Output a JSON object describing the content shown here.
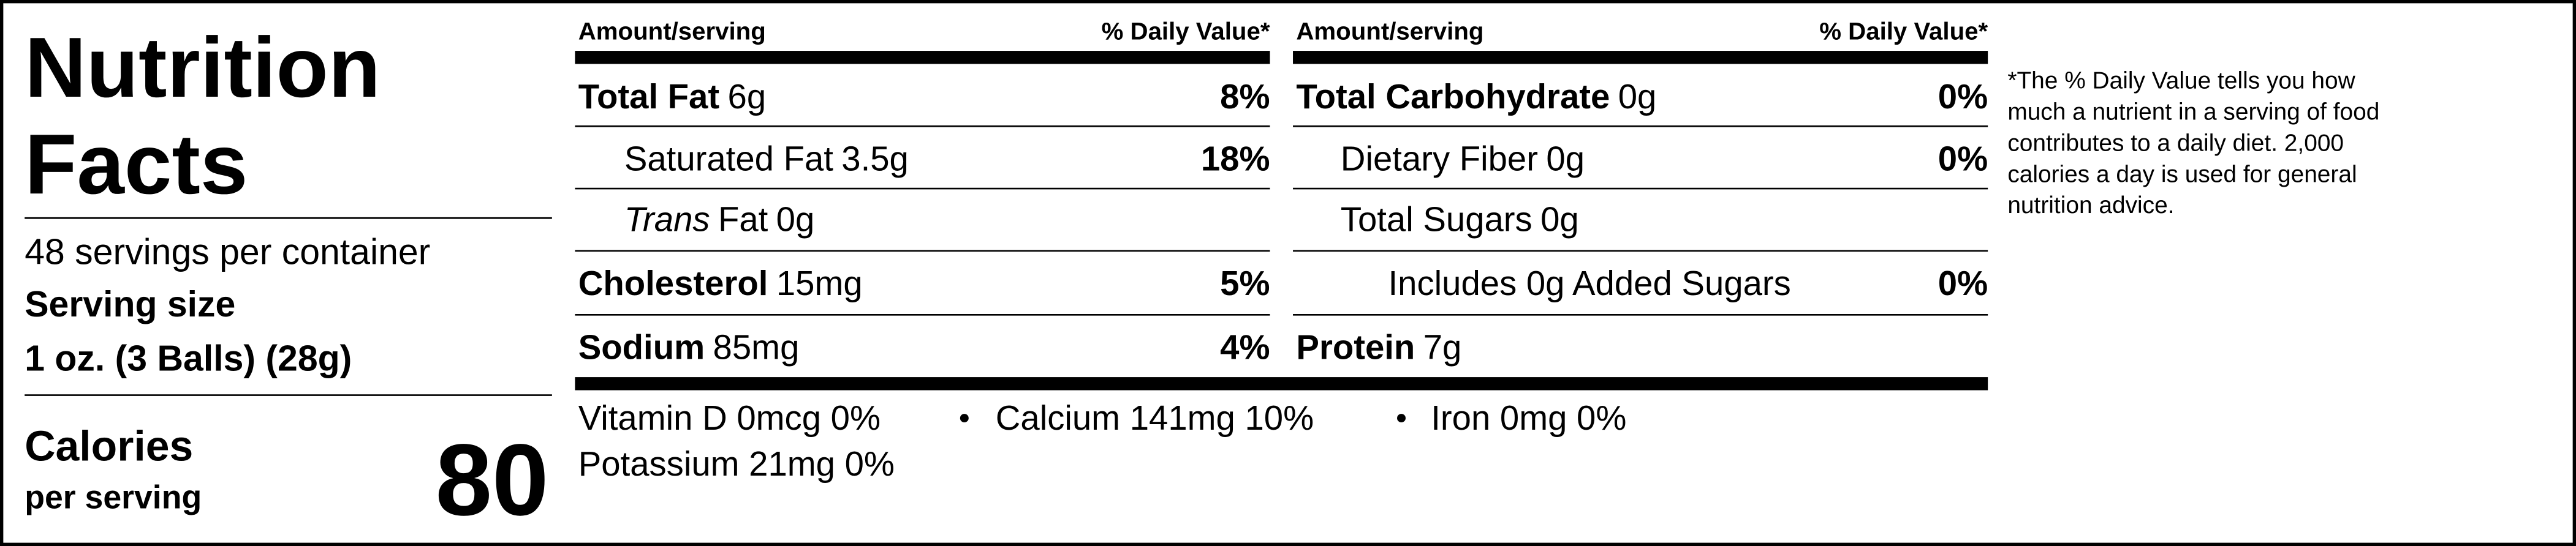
{
  "title": [
    "Nutrition",
    "Facts"
  ],
  "servings": "48 servings per container",
  "serving_size_label": "Serving size",
  "serving_size": "1 oz. (3 Balls) (28g)",
  "calories_label": "Calories",
  "calories_sub": "per serving",
  "calories": 80,
  "header": {
    "amount": "Amount/serving",
    "daily_value": "% Daily Value*"
  },
  "columns": [
    [
      {
        "name": "Total Fat",
        "amount": "6g",
        "dv": "8%"
      },
      {
        "name": "Saturated Fat",
        "amount": "3.5g",
        "dv": "18%"
      },
      {
        "name_prefix": "Trans",
        "name": "Fat",
        "amount": "0g"
      },
      {
        "name": "Cholesterol",
        "amount": "15mg",
        "dv": "5%"
      },
      {
        "name": "Sodium",
        "amount": "85mg",
        "dv": "4%"
      }
    ],
    [
      {
        "name": "Total Carbohydrate",
        "amount": "0g",
        "dv": "0%"
      },
      {
        "name": "Dietary Fiber",
        "amount": "0g",
        "dv": "0%"
      },
      {
        "name": "Total Sugars",
        "amount": "0g"
      },
      {
        "name": "Includes 0g Added Sugars",
        "dv": "0%"
      },
      {
        "name": "Protein",
        "amount": "7g"
      }
    ]
  ],
  "micronutrients": [
    "Vitamin D 0mcg 0%",
    "Calcium 141mg 10%",
    "Iron 0mg 0%",
    "Potassium 21mg 0%"
  ],
  "footnote": [
    "*The % Daily Value tells you how",
    "much a nutrient in a serving of food",
    "contributes to a daily diet. 2,000",
    "calories a day is used for general",
    "nutrition advice."
  ]
}
